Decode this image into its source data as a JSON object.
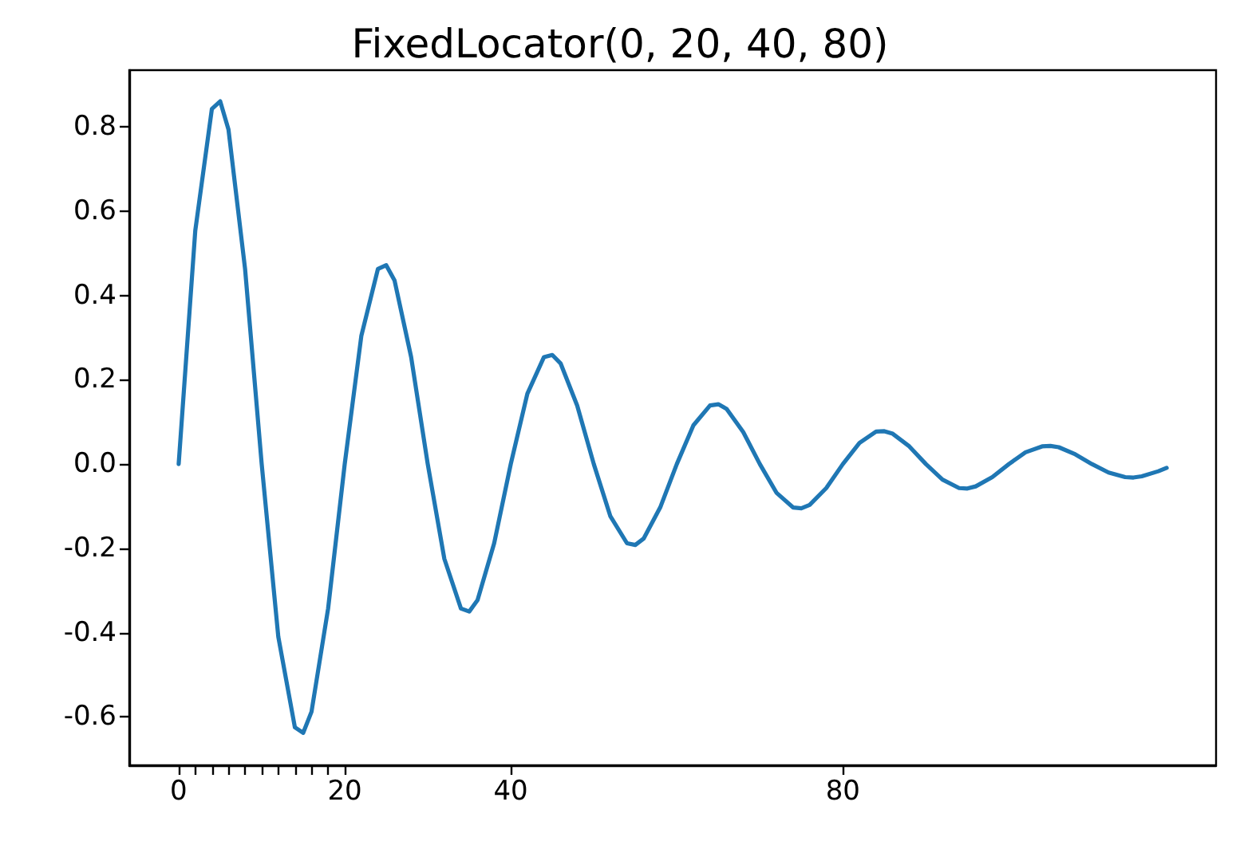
{
  "chart_data": {
    "type": "line",
    "title": "FixedLocator(0, 20, 40, 80)",
    "x": [
      0,
      2,
      4,
      5,
      6,
      8,
      10,
      12,
      14,
      15,
      16,
      18,
      20,
      22,
      24,
      25,
      26,
      28,
      30,
      32,
      34,
      35,
      36,
      38,
      40,
      42,
      44,
      45,
      46,
      48,
      50,
      52,
      54,
      55,
      56,
      58,
      60,
      62,
      64,
      65,
      66,
      68,
      70,
      72,
      74,
      75,
      76,
      78,
      80,
      82,
      84,
      85,
      86,
      88,
      90,
      92,
      94,
      95,
      96,
      98,
      100,
      102,
      104,
      105,
      106,
      108,
      110,
      112,
      114,
      115,
      116,
      118,
      119
    ],
    "series": [
      {
        "color": "#1f77b4",
        "values": [
          0,
          0.554,
          0.843,
          0.861,
          0.794,
          0.463,
          0,
          -0.41,
          -0.625,
          -0.638,
          -0.588,
          -0.343,
          0,
          0.304,
          0.463,
          0.472,
          0.436,
          0.254,
          0,
          -0.225,
          -0.343,
          -0.35,
          -0.323,
          -0.188,
          0,
          0.167,
          0.254,
          0.259,
          0.239,
          0.139,
          0,
          -0.124,
          -0.188,
          -0.192,
          -0.177,
          -0.103,
          0,
          0.092,
          0.139,
          0.142,
          0.131,
          0.076,
          0,
          -0.068,
          -0.103,
          -0.105,
          -0.097,
          -0.057,
          0,
          0.05,
          0.077,
          0.078,
          0.072,
          0.042,
          0,
          -0.037,
          -0.057,
          -0.058,
          -0.053,
          -0.031,
          0,
          0.028,
          0.042,
          0.043,
          0.04,
          0.023,
          0,
          -0.02,
          -0.031,
          -0.032,
          -0.029,
          -0.017,
          -0.009
        ]
      }
    ],
    "xlim": [
      -5.95,
      124.95
    ],
    "xticks": [
      0,
      {
        "value": 2,
        "label": null
      },
      {
        "value": 4,
        "label": null
      },
      {
        "value": 6,
        "label": null
      },
      {
        "value": 8,
        "label": null
      },
      {
        "value": 10,
        "label": null
      },
      {
        "value": 12,
        "label": null
      },
      {
        "value": 14,
        "label": null
      },
      {
        "value": 16,
        "label": null
      },
      {
        "value": 18,
        "label": null
      },
      20,
      40,
      80
    ],
    "ylim": [
      -0.715,
      0.935
    ],
    "yticks": [
      -0.6,
      -0.4,
      -0.2,
      {
        "value": 0,
        "label": "0.0"
      },
      0.2,
      0.4,
      0.6,
      0.8
    ],
    "marker": "none",
    "line_style": "solid"
  }
}
